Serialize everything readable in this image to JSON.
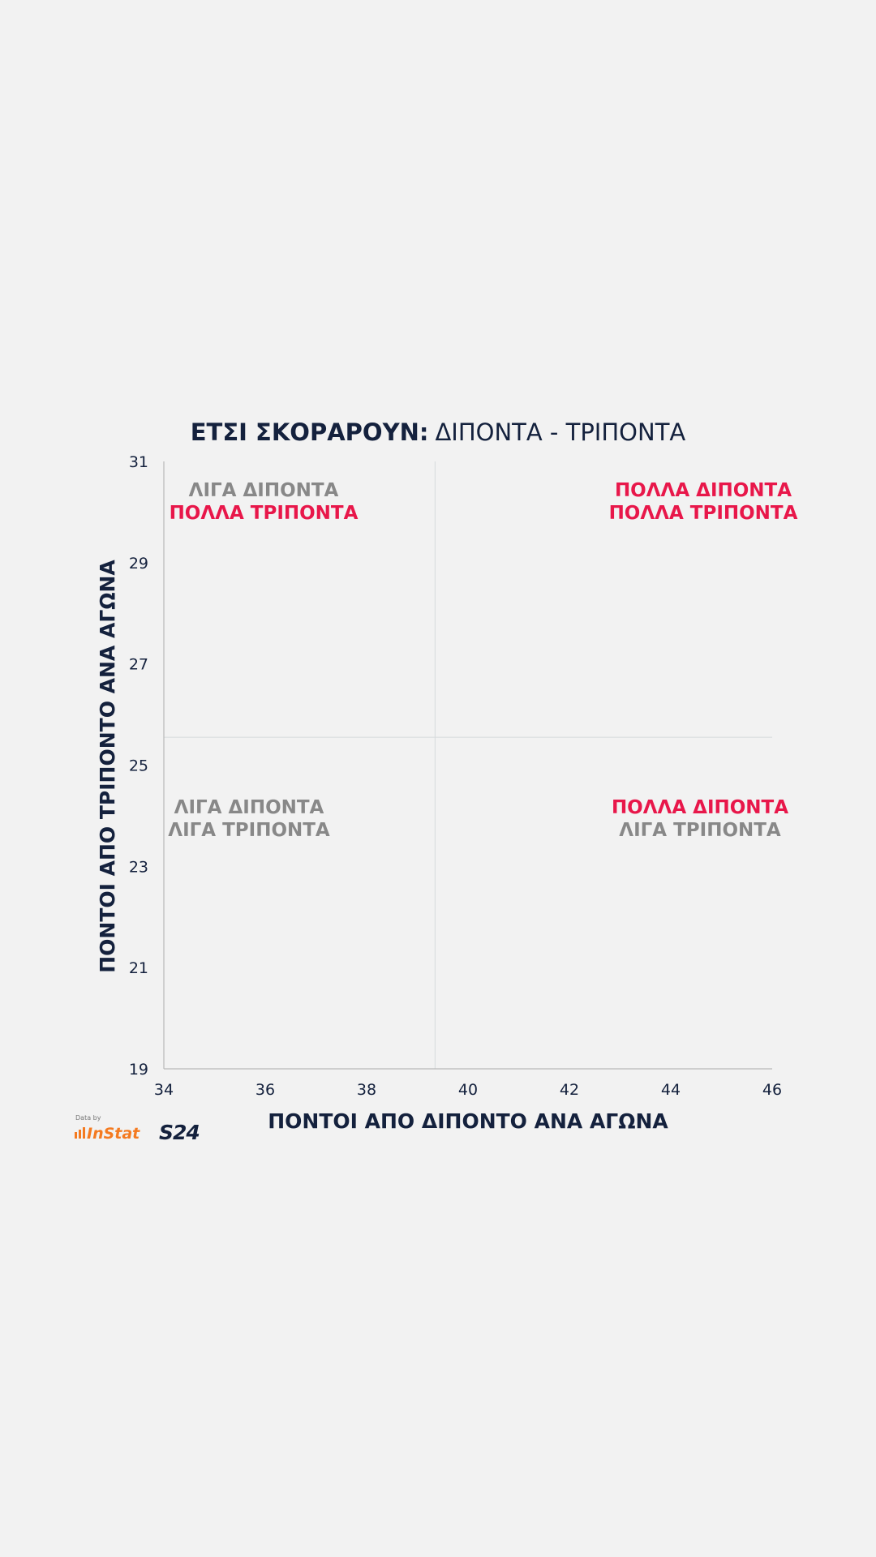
{
  "chart_data": {
    "type": "scatter",
    "title_bold": "ΕΤΣΙ ΣΚΟΡΑΡΟΥΝ:",
    "title_rest": "ΔΙΠΟΝΤΑ - ΤΡΙΠΟΝΤΑ",
    "xlabel": "ΠΟΝΤΟΙ ΑΠΟ ΔΙΠΟΝΤΟ ΑΝΑ ΑΓΩΝΑ",
    "ylabel": "ΠΟΝΤΟΙ ΑΠΟ ΤΡΙΠΟΝΤΟ ΑΝΑ ΑΓΩΝΑ",
    "xlim": [
      34,
      46
    ],
    "ylim": [
      19,
      31
    ],
    "xticks": [
      "34",
      "36",
      "38",
      "40",
      "42",
      "44",
      "46"
    ],
    "yticks": [
      "19",
      "21",
      "23",
      "25",
      "27",
      "29",
      "31"
    ],
    "x_divider": 39.35,
    "y_divider": 25.55,
    "points": [],
    "quadrant_labels": {
      "top_left": {
        "line1": "ΛΙΓΑ ΔΙΠΟΝΤΑ",
        "line2": "ΠΟΛΛΑ ΤΡΙΠΟΝΤΑ"
      },
      "top_right": {
        "line1": "ΠΟΛΛΑ ΔΙΠΟΝΤΑ",
        "line2": "ΠΟΛΛΑ ΤΡΙΠΟΝΤΑ"
      },
      "bottom_left": {
        "line1": "ΛΙΓΑ ΔΙΠΟΝΤΑ",
        "line2": "ΛΙΓΑ ΤΡΙΠΟΝΤΑ"
      },
      "bottom_right": {
        "line1": "ΠΟΛΛΑ ΔΙΠΟΝΤΑ",
        "line2": "ΛΙΓΑ ΤΡΙΠΟΝΤΑ"
      }
    },
    "colors": {
      "navy": "#14213d",
      "accent": "#e8174a",
      "muted": "#888888",
      "axis": "#b8b8b8",
      "grid": "#d6dadc"
    }
  },
  "footer": {
    "data_by": "Data by",
    "instat": "InStat",
    "brand": "S24",
    "instat_color": "#f47a20"
  }
}
